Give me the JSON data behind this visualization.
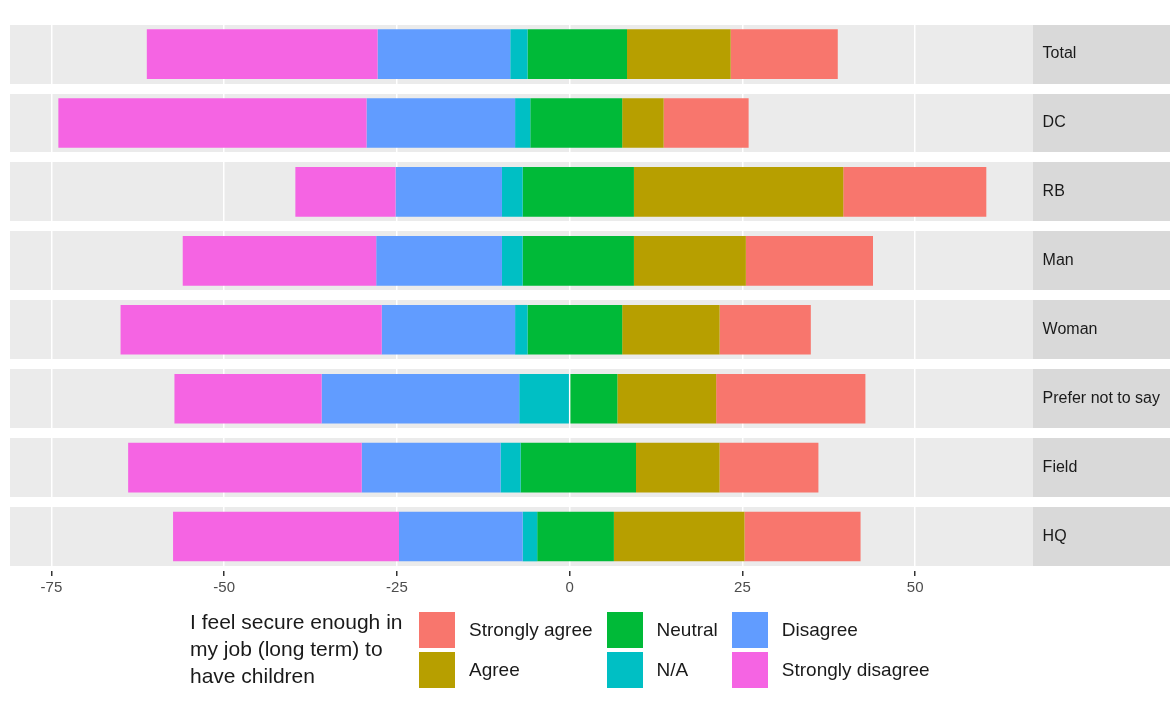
{
  "chart_data": {
    "type": "bar",
    "orientation": "horizontal",
    "legend_title": "I feel secure enough in my job (long term) to have children",
    "categories": [
      "Total",
      "DC",
      "RB",
      "Man",
      "Woman",
      "Prefer not to say",
      "Field",
      "HQ"
    ],
    "series": [
      {
        "name": "Strongly disagree",
        "color": "#f564e3",
        "base": [
          -61.2,
          -74.0,
          -39.7,
          -56.0,
          -65.0,
          -57.2,
          -63.9,
          -57.4
        ],
        "values": [
          33.4,
          44.6,
          14.5,
          28.0,
          37.8,
          21.3,
          33.8,
          32.7
        ]
      },
      {
        "name": "Disagree",
        "color": "#619cff",
        "base": [
          -27.8,
          -29.4,
          -25.2,
          -28.0,
          -27.2,
          -35.9,
          -30.1,
          -24.7
        ],
        "values": [
          19.2,
          21.5,
          15.4,
          18.2,
          19.3,
          28.6,
          20.1,
          17.9
        ]
      },
      {
        "name": "N/A",
        "color": "#00bfc4",
        "base": [
          -8.6,
          -7.9,
          -9.8,
          -9.8,
          -7.9,
          -7.3,
          -10.0,
          -6.8
        ],
        "values": [
          2.5,
          2.2,
          3.0,
          3.0,
          1.8,
          7.3,
          2.9,
          2.1
        ]
      },
      {
        "name": "Neutral",
        "color": "#00ba38",
        "base": [
          -6.1,
          -5.7,
          -6.8,
          -6.8,
          -6.1,
          0,
          -7.1,
          -4.7
        ],
        "values": [
          14.4,
          13.3,
          16.1,
          16.1,
          13.7,
          6.9,
          16.7,
          11.1
        ]
      },
      {
        "name": "Agree",
        "color": "#b79f00",
        "base": [
          8.3,
          7.6,
          9.3,
          9.3,
          7.6,
          6.9,
          9.6,
          6.4
        ],
        "values": [
          15.0,
          6.0,
          30.3,
          16.2,
          14.1,
          14.3,
          12.1,
          18.9
        ]
      },
      {
        "name": "Strongly agree",
        "color": "#f8766d",
        "base": [
          23.3,
          13.6,
          39.6,
          25.5,
          21.7,
          21.2,
          21.7,
          25.3
        ],
        "values": [
          15.5,
          12.3,
          20.7,
          18.4,
          13.2,
          21.6,
          14.3,
          16.8
        ]
      }
    ],
    "xlim": [
      -81,
      67
    ],
    "xticks": [
      -75,
      -50,
      -25,
      0,
      25,
      50
    ],
    "grid": "x",
    "legend": "bottom"
  }
}
